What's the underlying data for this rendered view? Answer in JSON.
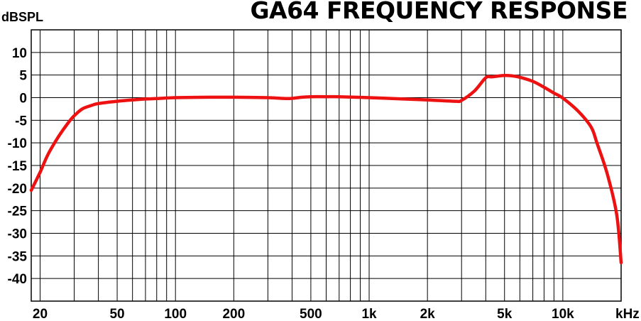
{
  "chart_data": {
    "type": "line",
    "title": "GA64 FREQUENCY RESPONSE",
    "ylabel": "dBSPL",
    "xunit": "kHz",
    "xscale": "log",
    "xlim": [
      18,
      20000
    ],
    "ylim": [
      -45,
      15
    ],
    "grid": true,
    "ytick_values": [
      10,
      5,
      0,
      -5,
      -10,
      -15,
      -20,
      -25,
      -30,
      -35,
      -40
    ],
    "ytick_labels": [
      "10",
      "5",
      "0",
      "-5",
      "-10",
      "-15",
      "-20",
      "-25",
      "-30",
      "-35",
      "-40"
    ],
    "xtick_values": [
      20,
      50,
      100,
      200,
      500,
      1000,
      2000,
      5000,
      10000
    ],
    "xtick_labels": [
      "20",
      "50",
      "100",
      "200",
      "500",
      "1k",
      "2k",
      "5k",
      "10k"
    ],
    "x_grid_values": [
      20,
      30,
      40,
      50,
      60,
      70,
      80,
      90,
      100,
      200,
      300,
      400,
      500,
      600,
      700,
      800,
      900,
      1000,
      2000,
      3000,
      4000,
      5000,
      6000,
      7000,
      8000,
      9000,
      10000,
      20000
    ],
    "line_color": "#ee1111",
    "series": [
      {
        "x": [
          18,
          20,
          22,
          25,
          28,
          30,
          33,
          37,
          40,
          50,
          60,
          70,
          80,
          100,
          150,
          200,
          300,
          380,
          450,
          500,
          600,
          700,
          1000,
          1500,
          2000,
          2800,
          3000,
          3500,
          4000,
          4300,
          5000,
          5500,
          6000,
          7000,
          8000,
          9000,
          10000,
          12000,
          14000,
          15000,
          17000,
          19000,
          20000
        ],
        "y": [
          -20.5,
          -16.5,
          -12.5,
          -8.5,
          -5.5,
          -4,
          -2.5,
          -1.7,
          -1.3,
          -0.8,
          -0.5,
          -0.3,
          -0.2,
          0,
          0.1,
          0.1,
          0,
          -0.2,
          0.1,
          0.2,
          0.2,
          0.2,
          0,
          -0.3,
          -0.5,
          -0.8,
          -0.6,
          1.5,
          4.4,
          4.6,
          4.9,
          4.8,
          4.5,
          3.6,
          2.3,
          1,
          -0.1,
          -3,
          -6.5,
          -10,
          -17,
          -26,
          -36.5
        ]
      }
    ]
  }
}
